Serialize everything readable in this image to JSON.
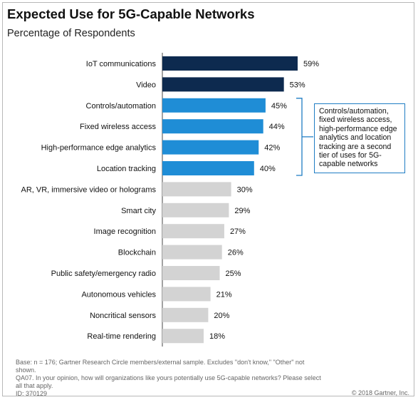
{
  "header": {
    "title": "Expected Use for 5G-Capable Networks",
    "subtitle": "Percentage of Respondents"
  },
  "chart_data": {
    "type": "bar",
    "orientation": "horizontal",
    "title": "Expected Use for 5G-Capable Networks",
    "subtitle": "Percentage of Respondents",
    "categories": [
      "IoT communications",
      "Video",
      "Controls/automation",
      "Fixed wireless access",
      "High-performance edge analytics",
      "Location tracking",
      "AR, VR, immersive video or holograms",
      "Smart city",
      "Image recognition",
      "Blockchain",
      "Public safety/emergency radio",
      "Autonomous vehicles",
      "Noncritical sensors",
      "Real-time rendering"
    ],
    "values": [
      59,
      53,
      45,
      44,
      42,
      40,
      30,
      29,
      27,
      26,
      25,
      21,
      20,
      18
    ],
    "value_labels": [
      "59%",
      "53%",
      "45%",
      "44%",
      "42%",
      "40%",
      "30%",
      "29%",
      "27%",
      "26%",
      "25%",
      "21%",
      "20%",
      "18%"
    ],
    "tiers": [
      1,
      1,
      2,
      2,
      2,
      2,
      3,
      3,
      3,
      3,
      3,
      3,
      3,
      3
    ],
    "tier_colors": {
      "1": "#0d2a4f",
      "2": "#1f8dd6",
      "3": "#d3d3d3"
    },
    "xlim": [
      0,
      100
    ],
    "grid": false,
    "annotation": {
      "text": "Controls/automation, fixed wireless access, high-performance edge analytics and location tracking are a second tier of uses for 5G-capable networks",
      "bracket_color": "#1f7dc4",
      "applies_to": [
        2,
        3,
        4,
        5
      ]
    }
  },
  "footer": {
    "base": "Base: n = 176; Gartner Research Circle members/external sample. Excludes \"don't know,\" \"Other\" not shown.",
    "question": "QA07. In your opinion, how will organizations like yours potentially use 5G-capable networks? Please select all that apply.",
    "id": "ID: 370129",
    "copyright": "© 2018 Gartner, Inc."
  }
}
